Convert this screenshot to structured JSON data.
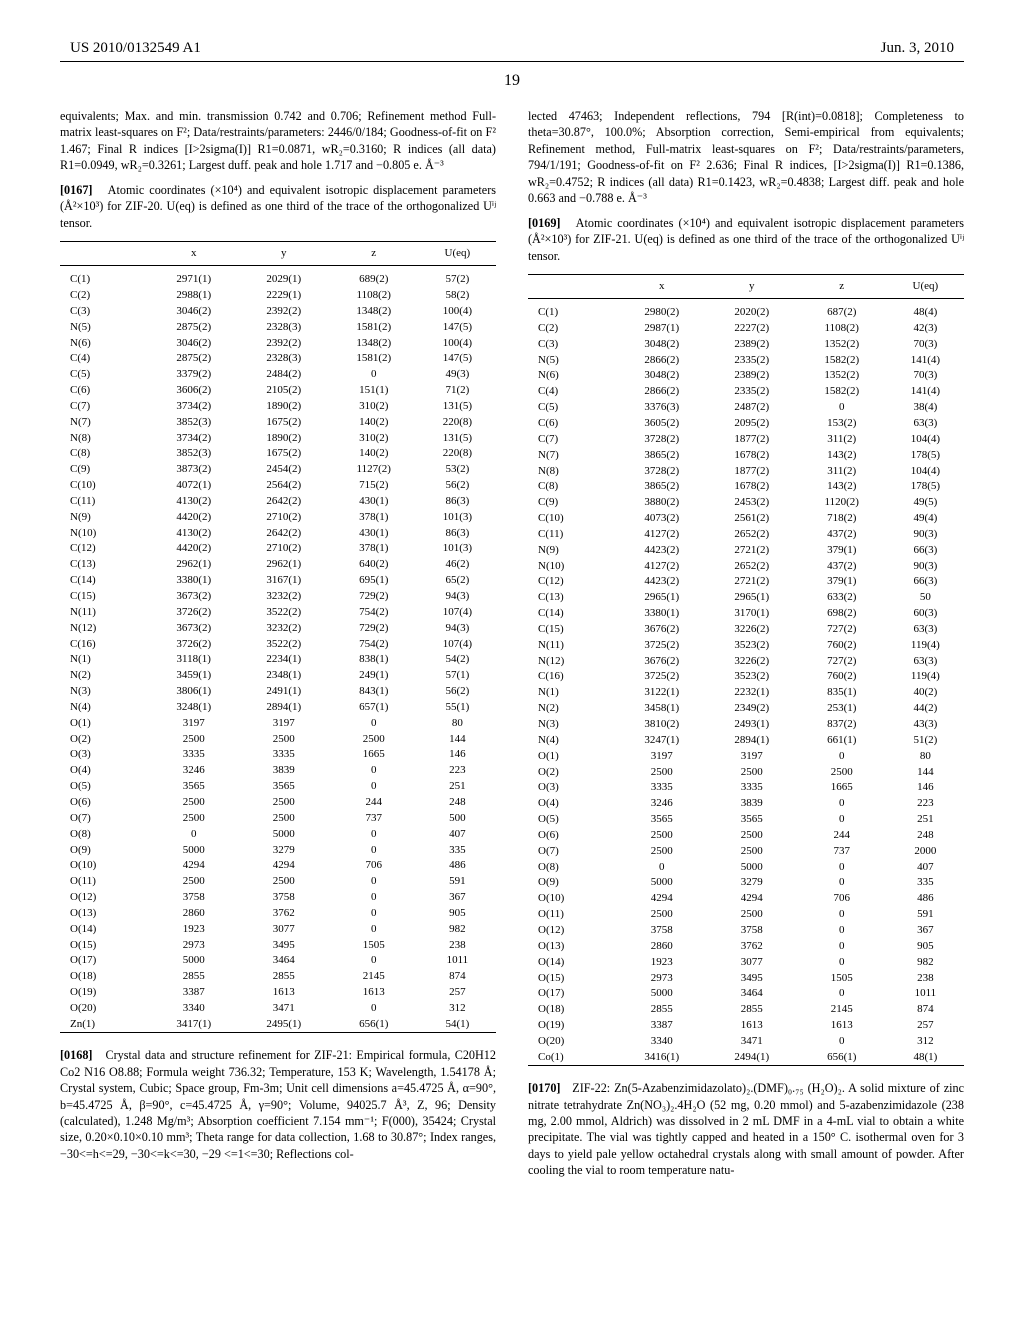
{
  "header": {
    "left": "US 2010/0132549 A1",
    "right": "Jun. 3, 2010",
    "page_num": "19"
  },
  "left_col": {
    "p1": "equivalents; Max. and min. transmission 0.742 and 0.706; Refinement method Full-matrix least-squares on F²; Data/restraints/parameters: 2446/0/184; Goodness-of-fit on F² 1.467; Final R indices [I>2sigma(I)] R1=0.0871, wR₂=0.3160; R indices (all data) R1=0.0949, wR₂=0.3261; Largest duff. peak and hole 1.717 and −0.805 e. Å⁻³",
    "p2_num": "[0167]",
    "p2": "Atomic coordinates (×10⁴) and equivalent isotropic displacement parameters (Å²×10³) for ZIF-20. U(eq) is defined as one third of the trace of the orthogonalized Uⁱʲ tensor.",
    "table": {
      "headers": [
        "",
        "x",
        "y",
        "z",
        "U(eq)"
      ],
      "rows": [
        [
          "C(1)",
          "2971(1)",
          "2029(1)",
          "689(2)",
          "57(2)"
        ],
        [
          "C(2)",
          "2988(1)",
          "2229(1)",
          "1108(2)",
          "58(2)"
        ],
        [
          "C(3)",
          "3046(2)",
          "2392(2)",
          "1348(2)",
          "100(4)"
        ],
        [
          "N(5)",
          "2875(2)",
          "2328(3)",
          "1581(2)",
          "147(5)"
        ],
        [
          "N(6)",
          "3046(2)",
          "2392(2)",
          "1348(2)",
          "100(4)"
        ],
        [
          "C(4)",
          "2875(2)",
          "2328(3)",
          "1581(2)",
          "147(5)"
        ],
        [
          "C(5)",
          "3379(2)",
          "2484(2)",
          "0",
          "49(3)"
        ],
        [
          "C(6)",
          "3606(2)",
          "2105(2)",
          "151(1)",
          "71(2)"
        ],
        [
          "C(7)",
          "3734(2)",
          "1890(2)",
          "310(2)",
          "131(5)"
        ],
        [
          "N(7)",
          "3852(3)",
          "1675(2)",
          "140(2)",
          "220(8)"
        ],
        [
          "N(8)",
          "3734(2)",
          "1890(2)",
          "310(2)",
          "131(5)"
        ],
        [
          "C(8)",
          "3852(3)",
          "1675(2)",
          "140(2)",
          "220(8)"
        ],
        [
          "C(9)",
          "3873(2)",
          "2454(2)",
          "1127(2)",
          "53(2)"
        ],
        [
          "C(10)",
          "4072(1)",
          "2564(2)",
          "715(2)",
          "56(2)"
        ],
        [
          "C(11)",
          "4130(2)",
          "2642(2)",
          "430(1)",
          "86(3)"
        ],
        [
          "N(9)",
          "4420(2)",
          "2710(2)",
          "378(1)",
          "101(3)"
        ],
        [
          "N(10)",
          "4130(2)",
          "2642(2)",
          "430(1)",
          "86(3)"
        ],
        [
          "C(12)",
          "4420(2)",
          "2710(2)",
          "378(1)",
          "101(3)"
        ],
        [
          "C(13)",
          "2962(1)",
          "2962(1)",
          "640(2)",
          "46(2)"
        ],
        [
          "C(14)",
          "3380(1)",
          "3167(1)",
          "695(1)",
          "65(2)"
        ],
        [
          "C(15)",
          "3673(2)",
          "3232(2)",
          "729(2)",
          "94(3)"
        ],
        [
          "N(11)",
          "3726(2)",
          "3522(2)",
          "754(2)",
          "107(4)"
        ],
        [
          "N(12)",
          "3673(2)",
          "3232(2)",
          "729(2)",
          "94(3)"
        ],
        [
          "C(16)",
          "3726(2)",
          "3522(2)",
          "754(2)",
          "107(4)"
        ],
        [
          "N(1)",
          "3118(1)",
          "2234(1)",
          "838(1)",
          "54(2)"
        ],
        [
          "N(2)",
          "3459(1)",
          "2348(1)",
          "249(1)",
          "57(1)"
        ],
        [
          "N(3)",
          "3806(1)",
          "2491(1)",
          "843(1)",
          "56(2)"
        ],
        [
          "N(4)",
          "3248(1)",
          "2894(1)",
          "657(1)",
          "55(1)"
        ],
        [
          "O(1)",
          "3197",
          "3197",
          "0",
          "80"
        ],
        [
          "O(2)",
          "2500",
          "2500",
          "2500",
          "144"
        ],
        [
          "O(3)",
          "3335",
          "3335",
          "1665",
          "146"
        ],
        [
          "O(4)",
          "3246",
          "3839",
          "0",
          "223"
        ],
        [
          "O(5)",
          "3565",
          "3565",
          "0",
          "251"
        ],
        [
          "O(6)",
          "2500",
          "2500",
          "244",
          "248"
        ],
        [
          "O(7)",
          "2500",
          "2500",
          "737",
          "500"
        ],
        [
          "O(8)",
          "0",
          "5000",
          "0",
          "407"
        ],
        [
          "O(9)",
          "5000",
          "3279",
          "0",
          "335"
        ],
        [
          "O(10)",
          "4294",
          "4294",
          "706",
          "486"
        ],
        [
          "O(11)",
          "2500",
          "2500",
          "0",
          "591"
        ],
        [
          "O(12)",
          "3758",
          "3758",
          "0",
          "367"
        ],
        [
          "O(13)",
          "2860",
          "3762",
          "0",
          "905"
        ],
        [
          "O(14)",
          "1923",
          "3077",
          "0",
          "982"
        ],
        [
          "O(15)",
          "2973",
          "3495",
          "1505",
          "238"
        ],
        [
          "O(17)",
          "5000",
          "3464",
          "0",
          "1011"
        ],
        [
          "O(18)",
          "2855",
          "2855",
          "2145",
          "874"
        ],
        [
          "O(19)",
          "3387",
          "1613",
          "1613",
          "257"
        ],
        [
          "O(20)",
          "3340",
          "3471",
          "0",
          "312"
        ],
        [
          "Zn(1)",
          "3417(1)",
          "2495(1)",
          "656(1)",
          "54(1)"
        ]
      ]
    },
    "p3_num": "[0168]",
    "p3": "Crystal data and structure refinement for ZIF-21: Empirical formula, C20H12 Co2 N16 O8.88; Formula weight 736.32; Temperature, 153 K; Wavelength, 1.54178 Å; Crystal system, Cubic; Space group, Fm-3m; Unit cell dimensions a=45.4725 Å, α=90°, b=45.4725 Å, β=90°, c=45.4725 Å, γ=90°; Volume, 94025.7 Å³, Z, 96; Density (calculated), 1.248 Mg/m³; Absorption coefficient 7.154 mm⁻¹; F(000), 35424; Crystal size, 0.20×0.10×0.10 mm³; Theta range for data collection, 1.68 to 30.87°; Index ranges, −30<=h<=29, −30<=k<=30, −29 <=1<=30; Reflections col-"
  },
  "right_col": {
    "p1": "lected 47463; Independent reflections, 794 [R(int)=0.0818]; Completeness to theta=30.87°, 100.0%; Absorption correction, Semi-empirical from equivalents; Refinement method, Full-matrix least-squares on F²; Data/restraints/parameters, 794/1/191; Goodness-of-fit on F² 2.636; Final R indices, [I>2sigma(I)] R1=0.1386, wR₂=0.4752; R indices (all data) R1=0.1423, wR₂=0.4838; Largest diff. peak and hole 0.663 and −0.788 e. Å⁻³",
    "p2_num": "[0169]",
    "p2": "Atomic coordinates (×10⁴) and equivalent isotropic displacement parameters (Å²×10³) for ZIF-21. U(eq) is defined as one third of the trace of the orthogonalized Uⁱʲ tensor.",
    "table": {
      "headers": [
        "",
        "x",
        "y",
        "z",
        "U(eq)"
      ],
      "rows": [
        [
          "C(1)",
          "2980(2)",
          "2020(2)",
          "687(2)",
          "48(4)"
        ],
        [
          "C(2)",
          "2987(1)",
          "2227(2)",
          "1108(2)",
          "42(3)"
        ],
        [
          "C(3)",
          "3048(2)",
          "2389(2)",
          "1352(2)",
          "70(3)"
        ],
        [
          "N(5)",
          "2866(2)",
          "2335(2)",
          "1582(2)",
          "141(4)"
        ],
        [
          "N(6)",
          "3048(2)",
          "2389(2)",
          "1352(2)",
          "70(3)"
        ],
        [
          "C(4)",
          "2866(2)",
          "2335(2)",
          "1582(2)",
          "141(4)"
        ],
        [
          "C(5)",
          "3376(3)",
          "2487(2)",
          "0",
          "38(4)"
        ],
        [
          "C(6)",
          "3605(2)",
          "2095(2)",
          "153(2)",
          "63(3)"
        ],
        [
          "C(7)",
          "3728(2)",
          "1877(2)",
          "311(2)",
          "104(4)"
        ],
        [
          "N(7)",
          "3865(2)",
          "1678(2)",
          "143(2)",
          "178(5)"
        ],
        [
          "N(8)",
          "3728(2)",
          "1877(2)",
          "311(2)",
          "104(4)"
        ],
        [
          "C(8)",
          "3865(2)",
          "1678(2)",
          "143(2)",
          "178(5)"
        ],
        [
          "C(9)",
          "3880(2)",
          "2453(2)",
          "1120(2)",
          "49(5)"
        ],
        [
          "C(10)",
          "4073(2)",
          "2561(2)",
          "718(2)",
          "49(4)"
        ],
        [
          "C(11)",
          "4127(2)",
          "2652(2)",
          "437(2)",
          "90(3)"
        ],
        [
          "N(9)",
          "4423(2)",
          "2721(2)",
          "379(1)",
          "66(3)"
        ],
        [
          "N(10)",
          "4127(2)",
          "2652(2)",
          "437(2)",
          "90(3)"
        ],
        [
          "C(12)",
          "4423(2)",
          "2721(2)",
          "379(1)",
          "66(3)"
        ],
        [
          "C(13)",
          "2965(1)",
          "2965(1)",
          "633(2)",
          "50"
        ],
        [
          "C(14)",
          "3380(1)",
          "3170(1)",
          "698(2)",
          "60(3)"
        ],
        [
          "C(15)",
          "3676(2)",
          "3226(2)",
          "727(2)",
          "63(3)"
        ],
        [
          "N(11)",
          "3725(2)",
          "3523(2)",
          "760(2)",
          "119(4)"
        ],
        [
          "N(12)",
          "3676(2)",
          "3226(2)",
          "727(2)",
          "63(3)"
        ],
        [
          "C(16)",
          "3725(2)",
          "3523(2)",
          "760(2)",
          "119(4)"
        ],
        [
          "N(1)",
          "3122(1)",
          "2232(1)",
          "835(1)",
          "40(2)"
        ],
        [
          "N(2)",
          "3458(1)",
          "2349(2)",
          "253(1)",
          "44(2)"
        ],
        [
          "N(3)",
          "3810(2)",
          "2493(1)",
          "837(2)",
          "43(3)"
        ],
        [
          "N(4)",
          "3247(1)",
          "2894(1)",
          "661(1)",
          "51(2)"
        ],
        [
          "O(1)",
          "3197",
          "3197",
          "0",
          "80"
        ],
        [
          "O(2)",
          "2500",
          "2500",
          "2500",
          "144"
        ],
        [
          "O(3)",
          "3335",
          "3335",
          "1665",
          "146"
        ],
        [
          "O(4)",
          "3246",
          "3839",
          "0",
          "223"
        ],
        [
          "O(5)",
          "3565",
          "3565",
          "0",
          "251"
        ],
        [
          "O(6)",
          "2500",
          "2500",
          "244",
          "248"
        ],
        [
          "O(7)",
          "2500",
          "2500",
          "737",
          "2000"
        ],
        [
          "O(8)",
          "0",
          "5000",
          "0",
          "407"
        ],
        [
          "O(9)",
          "5000",
          "3279",
          "0",
          "335"
        ],
        [
          "O(10)",
          "4294",
          "4294",
          "706",
          "486"
        ],
        [
          "O(11)",
          "2500",
          "2500",
          "0",
          "591"
        ],
        [
          "O(12)",
          "3758",
          "3758",
          "0",
          "367"
        ],
        [
          "O(13)",
          "2860",
          "3762",
          "0",
          "905"
        ],
        [
          "O(14)",
          "1923",
          "3077",
          "0",
          "982"
        ],
        [
          "O(15)",
          "2973",
          "3495",
          "1505",
          "238"
        ],
        [
          "O(17)",
          "5000",
          "3464",
          "0",
          "1011"
        ],
        [
          "O(18)",
          "2855",
          "2855",
          "2145",
          "874"
        ],
        [
          "O(19)",
          "3387",
          "1613",
          "1613",
          "257"
        ],
        [
          "O(20)",
          "3340",
          "3471",
          "0",
          "312"
        ],
        [
          "Co(1)",
          "3416(1)",
          "2494(1)",
          "656(1)",
          "48(1)"
        ]
      ]
    },
    "p3_num": "[0170]",
    "p3": "ZIF-22: Zn(5-Azabenzimidazolato)₂.(DMF)₀.₇₅ (H₂O)₂. A solid mixture of zinc nitrate tetrahydrate Zn(NO₃)₂.4H₂O (52 mg, 0.20 mmol) and 5-azabenzimidazole (238 mg, 2.00 mmol, Aldrich) was dissolved in 2 mL DMF in a 4-mL vial to obtain a white precipitate. The vial was tightly capped and heated in a 150° C. isothermal oven for 3 days to yield pale yellow octahedral crystals along with small amount of powder. After cooling the vial to room temperature natu-"
  }
}
